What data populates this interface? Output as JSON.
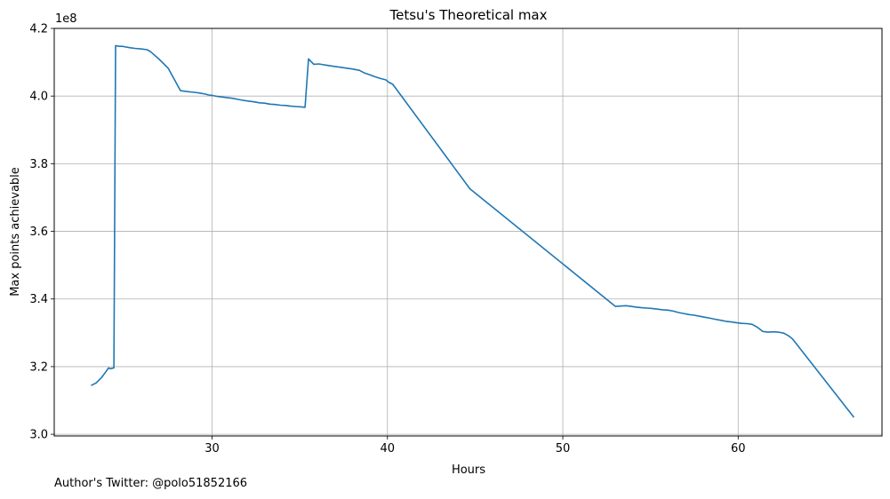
{
  "chart_data": {
    "type": "line",
    "title": "Tetsu's Theoretical max",
    "xlabel": "Hours",
    "ylabel": "Max points achievable",
    "y_offset_label": "1e8",
    "xlim": [
      21,
      68.2
    ],
    "ylim": [
      2.995,
      4.2
    ],
    "xticks": [
      30,
      40,
      50,
      60
    ],
    "xtick_labels": [
      "30",
      "40",
      "50",
      "60"
    ],
    "yticks": [
      3.0,
      3.2,
      3.4,
      3.6,
      3.8,
      4.0,
      4.2
    ],
    "ytick_labels": [
      "3.0",
      "3.2",
      "3.4",
      "3.6",
      "3.8",
      "4.0",
      "4.2"
    ],
    "grid": true,
    "line_color": "#1f77b4",
    "series": [
      {
        "name": "Max points achievable",
        "x": [
          23.1,
          23.4,
          23.7,
          23.9,
          24.1,
          24.2,
          24.4,
          24.5,
          24.7,
          24.9,
          25.0,
          25.3,
          25.6,
          26.0,
          26.3,
          26.5,
          27.0,
          27.5,
          28.2,
          28.6,
          29.0,
          29.3,
          29.6,
          29.8,
          30.0,
          30.3,
          30.6,
          30.9,
          31.2,
          31.5,
          31.8,
          32.1,
          32.4,
          32.7,
          33.0,
          33.3,
          33.6,
          33.9,
          34.2,
          34.5,
          34.8,
          35.1,
          35.3,
          35.5,
          35.8,
          36.1,
          36.4,
          36.8,
          37.2,
          37.6,
          38.0,
          38.4,
          38.7,
          39.0,
          39.3,
          39.6,
          39.9,
          40.1,
          40.3,
          44.7,
          53.0,
          53.3,
          53.6,
          53.9,
          54.2,
          54.5,
          54.8,
          55.1,
          55.4,
          55.7,
          56.0,
          56.3,
          56.6,
          56.9,
          57.2,
          57.5,
          57.8,
          58.1,
          58.4,
          58.7,
          59.0,
          59.3,
          59.6,
          59.9,
          60.2,
          60.5,
          60.8,
          61.1,
          61.4,
          61.7,
          62.0,
          62.3,
          62.6,
          62.9,
          63.1,
          66.6
        ],
        "y": [
          3.144,
          3.152,
          3.168,
          3.182,
          3.196,
          3.194,
          3.196,
          4.149,
          4.147,
          4.147,
          4.146,
          4.143,
          4.141,
          4.139,
          4.137,
          4.131,
          4.108,
          4.082,
          4.016,
          4.013,
          4.011,
          4.009,
          4.006,
          4.003,
          4.002,
          3.999,
          3.997,
          3.995,
          3.993,
          3.99,
          3.987,
          3.985,
          3.983,
          3.98,
          3.979,
          3.976,
          3.975,
          3.973,
          3.972,
          3.97,
          3.969,
          3.968,
          3.967,
          4.11,
          4.094,
          4.095,
          4.092,
          4.089,
          4.086,
          4.083,
          4.08,
          4.076,
          4.068,
          4.063,
          4.057,
          4.052,
          4.048,
          4.04,
          4.035,
          3.726,
          3.378,
          3.379,
          3.38,
          3.378,
          3.376,
          3.374,
          3.373,
          3.372,
          3.37,
          3.368,
          3.367,
          3.364,
          3.36,
          3.357,
          3.354,
          3.352,
          3.349,
          3.346,
          3.343,
          3.34,
          3.337,
          3.334,
          3.332,
          3.33,
          3.328,
          3.327,
          3.325,
          3.316,
          3.304,
          3.302,
          3.303,
          3.302,
          3.299,
          3.29,
          3.282,
          3.05
        ]
      }
    ]
  },
  "footnote": "Author's Twitter: @polo51852166"
}
